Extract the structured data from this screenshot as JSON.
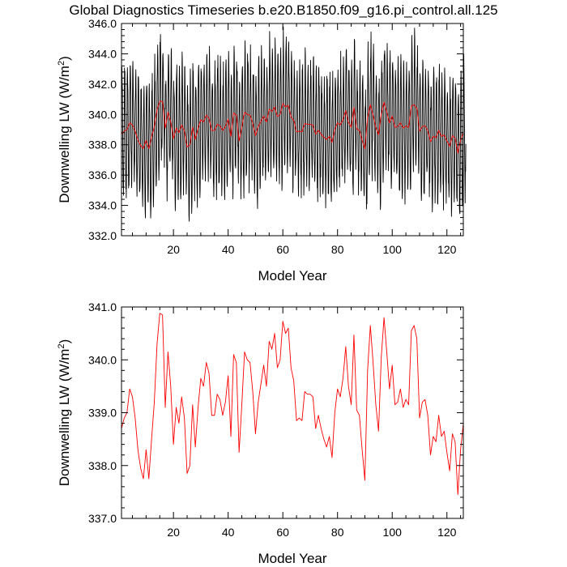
{
  "page_title": "Global Diagnostics Timeseries b.e20.B1850.f09_g16.pi_control.all.125",
  "colors": {
    "monthly": "#000000",
    "annual": "#ff0000",
    "axes": "#000000",
    "background": "#ffffff"
  },
  "chart_data": [
    {
      "type": "line",
      "title": "Global Diagnostics Timeseries b.e20.B1850.f09_g16.pi_control.all.125",
      "ylabel": "Downwelling LW (W/m²)",
      "ylabel_main": "Downwelling LW (W/m",
      "ylabel_sup": "2",
      "ylabel_close": ")",
      "xlabel": "Model Year",
      "xlim": [
        1,
        126
      ],
      "ylim": [
        332.0,
        346.0
      ],
      "xticks": [
        20,
        40,
        60,
        80,
        100,
        120
      ],
      "yticks": [
        332.0,
        334.0,
        336.0,
        338.0,
        340.0,
        342.0,
        344.0,
        346.0
      ],
      "ytick_labels": [
        "332.0",
        "334.0",
        "336.0",
        "338.0",
        "340.0",
        "342.0",
        "344.0",
        "346.0"
      ],
      "grid": false,
      "series": [
        {
          "color": "#000000",
          "style": "monthly seasonal cycle",
          "x_start": 1,
          "points_per_year": 12,
          "seasonal_amplitude": 3.9,
          "values_note": "monthly values oscillate about the annual mean with roughly ±4 W/m² seasonal amplitude, ranging ~333.1 to ~345.4"
        },
        {
          "color": "#ff0000",
          "x_start": 1,
          "values": [
            338.7,
            338.9,
            339.0,
            339.45,
            339.3,
            338.9,
            338.3,
            337.95,
            337.75,
            338.3,
            337.75,
            338.5,
            339.2,
            340.3,
            340.88,
            340.85,
            339.1,
            340.15,
            339.5,
            338.4,
            339.1,
            338.8,
            339.3,
            338.9,
            337.85,
            338.0,
            339.15,
            338.35,
            339.1,
            339.65,
            339.5,
            339.95,
            339.75,
            338.95,
            338.95,
            339.35,
            339.25,
            338.95,
            339.2,
            339.7,
            338.55,
            340.1,
            339.95,
            338.25,
            339.15,
            340.15,
            340.0,
            339.95,
            339.4,
            338.6,
            339.2,
            339.55,
            339.9,
            339.5,
            340.35,
            340.2,
            340.5,
            339.85,
            340.0,
            340.73,
            340.5,
            340.6,
            339.85,
            339.6,
            338.85,
            338.9,
            338.85,
            339.4,
            339.35,
            339.35,
            339.3,
            338.7,
            338.95,
            338.7,
            338.5,
            338.35,
            338.55,
            338.15,
            339.0,
            339.45,
            339.3,
            339.65,
            340.25,
            339.5,
            339.15,
            340.47,
            339.05,
            338.95,
            338.3,
            337.72,
            339.8,
            340.65,
            339.95,
            339.15,
            338.65,
            340.05,
            340.8,
            340.15,
            339.45,
            339.9,
            339.15,
            339.2,
            339.45,
            339.1,
            339.25,
            339.15,
            340.55,
            340.65,
            340.4,
            338.9,
            339.2,
            339.25,
            338.95,
            338.2,
            338.55,
            338.45,
            338.95,
            338.55,
            338.65,
            338.25,
            337.9,
            338.6,
            338.45,
            337.45,
            338.3,
            338.8
          ]
        }
      ]
    },
    {
      "type": "line",
      "ylabel": "Downwelling LW (W/m²)",
      "ylabel_main": "Downwelling LW (W/m",
      "ylabel_sup": "2",
      "ylabel_close": ")",
      "xlabel": "Model Year",
      "xlim": [
        1,
        126
      ],
      "ylim": [
        337.0,
        341.0
      ],
      "xticks": [
        20,
        40,
        60,
        80,
        100,
        120
      ],
      "yticks": [
        337.0,
        338.0,
        339.0,
        340.0,
        341.0
      ],
      "ytick_labels": [
        "337.0",
        "338.0",
        "339.0",
        "340.0",
        "341.0"
      ],
      "grid": false,
      "series": [
        {
          "color": "#ff0000",
          "x_start": 1,
          "values_ref": "same annual means as top panel red series"
        }
      ]
    }
  ]
}
